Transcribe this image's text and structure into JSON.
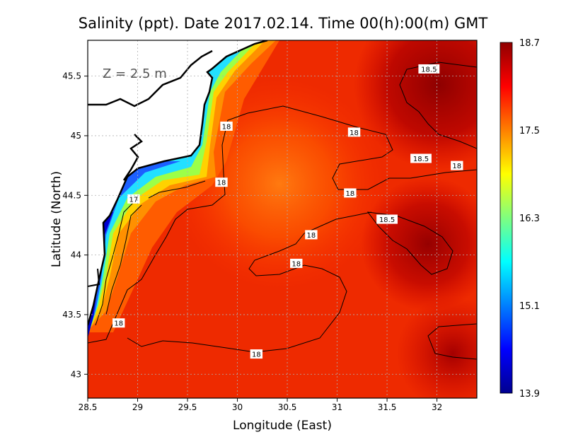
{
  "title": "Salinity (ppt). Date 2017.02.14. Time 00(h):00(m) GMT",
  "depth_label": "Z = 2.5 m",
  "xlabel": "Longitude (East)",
  "ylabel": "Latitude (North)",
  "colors": {
    "colormap": [
      "#00008f",
      "#0000ff",
      "#00ffff",
      "#ffff00",
      "#ff0000",
      "#8f0000"
    ],
    "land": "#ffffff",
    "coastline": "#000000",
    "contour": "#000000",
    "grid": "#b0b0b0"
  },
  "chart_data": {
    "type": "heatmap",
    "variable": "Salinity (ppt)",
    "xlim": [
      28.5,
      32.4
    ],
    "ylim": [
      42.8,
      45.8
    ],
    "x_ticks": [
      {
        "value": 28.5,
        "label": "28.5"
      },
      {
        "value": 29,
        "label": "29"
      },
      {
        "value": 29.5,
        "label": "29.5"
      },
      {
        "value": 30,
        "label": "30"
      },
      {
        "value": 30.5,
        "label": "30.5"
      },
      {
        "value": 31,
        "label": "31"
      },
      {
        "value": 31.5,
        "label": "31.5"
      },
      {
        "value": 32,
        "label": "32"
      }
    ],
    "y_ticks": [
      {
        "value": 43,
        "label": "43"
      },
      {
        "value": 43.5,
        "label": "43.5"
      },
      {
        "value": 44,
        "label": "44"
      },
      {
        "value": 44.5,
        "label": "44.5"
      },
      {
        "value": 45,
        "label": "45"
      },
      {
        "value": 45.5,
        "label": "45.5"
      }
    ],
    "grid": true,
    "colorbar": {
      "range": [
        13.9,
        18.7
      ],
      "ticks": [
        {
          "value": 18.7,
          "label": "18.7"
        },
        {
          "value": 17.5,
          "label": "17.5"
        },
        {
          "value": 16.3,
          "label": "16.3"
        },
        {
          "value": 15.1,
          "label": "15.1"
        },
        {
          "value": 13.9,
          "label": "13.9"
        }
      ]
    },
    "contour_labels": [
      {
        "text": "18.5",
        "lon": 31.92,
        "lat": 45.56
      },
      {
        "text": "18",
        "lon": 29.89,
        "lat": 45.08
      },
      {
        "text": "18",
        "lon": 31.17,
        "lat": 45.03
      },
      {
        "text": "18.5",
        "lon": 31.84,
        "lat": 44.81
      },
      {
        "text": "18",
        "lon": 32.2,
        "lat": 44.75
      },
      {
        "text": "18",
        "lon": 29.84,
        "lat": 44.61
      },
      {
        "text": "17",
        "lon": 28.96,
        "lat": 44.47
      },
      {
        "text": "18",
        "lon": 31.13,
        "lat": 44.52
      },
      {
        "text": "18.5",
        "lon": 31.5,
        "lat": 44.3
      },
      {
        "text": "18",
        "lon": 30.74,
        "lat": 44.17
      },
      {
        "text": "18",
        "lon": 30.59,
        "lat": 43.93
      },
      {
        "text": "18",
        "lon": 28.81,
        "lat": 43.43
      },
      {
        "text": "18",
        "lon": 30.19,
        "lat": 43.17
      }
    ]
  }
}
